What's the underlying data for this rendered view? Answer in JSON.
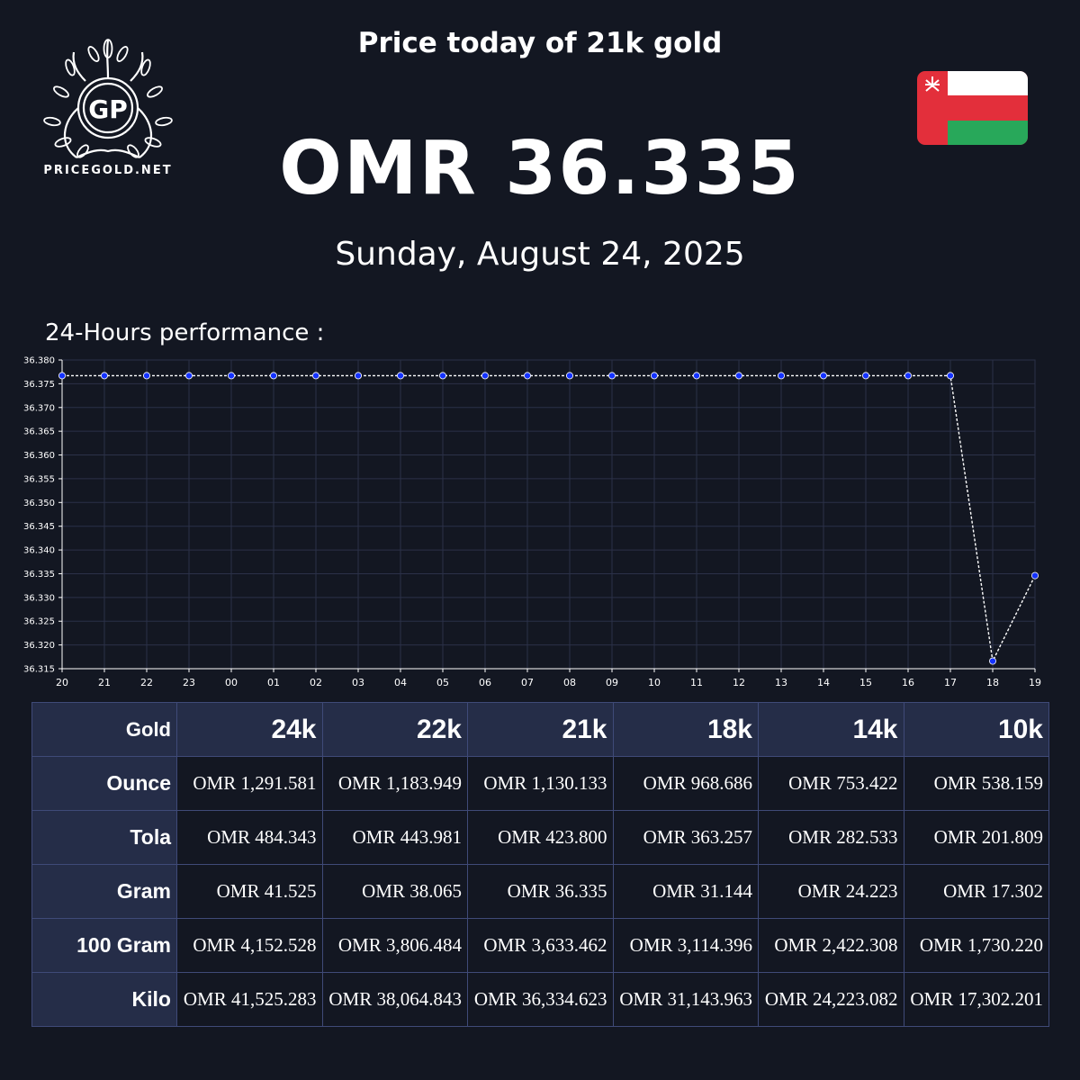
{
  "brand": {
    "logo_text": "PRICEGOLD.NET",
    "logo_mark": "GP"
  },
  "headline": "Price today of 21k gold",
  "price": "OMR 36.335",
  "date": "Sunday, August 24, 2025",
  "flag_icon": "oman-flag-icon",
  "performance_label": "24-Hours performance :",
  "colors": {
    "background": "#131722",
    "table_header": "#252d48",
    "point": "#1432ff",
    "line": "#ffffff",
    "grid": "#2b3148"
  },
  "chart_data": {
    "type": "line",
    "title": "",
    "xlabel": "",
    "ylabel": "",
    "categories": [
      "20",
      "21",
      "22",
      "23",
      "00",
      "01",
      "02",
      "03",
      "04",
      "05",
      "06",
      "07",
      "08",
      "09",
      "10",
      "11",
      "12",
      "13",
      "14",
      "15",
      "16",
      "17",
      "18",
      "19"
    ],
    "series": [
      {
        "values": [
          36.3767,
          36.3767,
          36.3767,
          36.3767,
          36.3767,
          36.3767,
          36.3767,
          36.3767,
          36.3767,
          36.3767,
          36.3767,
          36.3767,
          36.3767,
          36.3767,
          36.3767,
          36.3767,
          36.3767,
          36.3767,
          36.3767,
          36.3767,
          36.3767,
          36.3767,
          36.3166,
          36.3346
        ]
      }
    ],
    "ylim": [
      36.315,
      36.38
    ],
    "yticks": [
      "36.380",
      "36.375",
      "36.370",
      "36.365",
      "36.360",
      "36.355",
      "36.350",
      "36.345",
      "36.340",
      "36.335",
      "36.330",
      "36.325",
      "36.320",
      "36.315"
    ],
    "grid": true,
    "line_style": "dashed"
  },
  "table": {
    "corner": "Gold",
    "karats": [
      "24k",
      "22k",
      "21k",
      "18k",
      "14k",
      "10k"
    ],
    "rows": [
      {
        "label": "Ounce",
        "values": [
          "OMR 1,291.581",
          "OMR 1,183.949",
          "OMR 1,130.133",
          "OMR 968.686",
          "OMR 753.422",
          "OMR 538.159"
        ]
      },
      {
        "label": "Tola",
        "values": [
          "OMR 484.343",
          "OMR 443.981",
          "OMR 423.800",
          "OMR 363.257",
          "OMR 282.533",
          "OMR 201.809"
        ]
      },
      {
        "label": "Gram",
        "values": [
          "OMR 41.525",
          "OMR 38.065",
          "OMR 36.335",
          "OMR 31.144",
          "OMR 24.223",
          "OMR 17.302"
        ]
      },
      {
        "label": "100 Gram",
        "values": [
          "OMR 4,152.528",
          "OMR 3,806.484",
          "OMR 3,633.462",
          "OMR 3,114.396",
          "OMR 2,422.308",
          "OMR 1,730.220"
        ]
      },
      {
        "label": "Kilo",
        "values": [
          "OMR 41,525.283",
          "OMR 38,064.843",
          "OMR 36,334.623",
          "OMR 31,143.963",
          "OMR 24,223.082",
          "OMR 17,302.201"
        ]
      }
    ]
  }
}
